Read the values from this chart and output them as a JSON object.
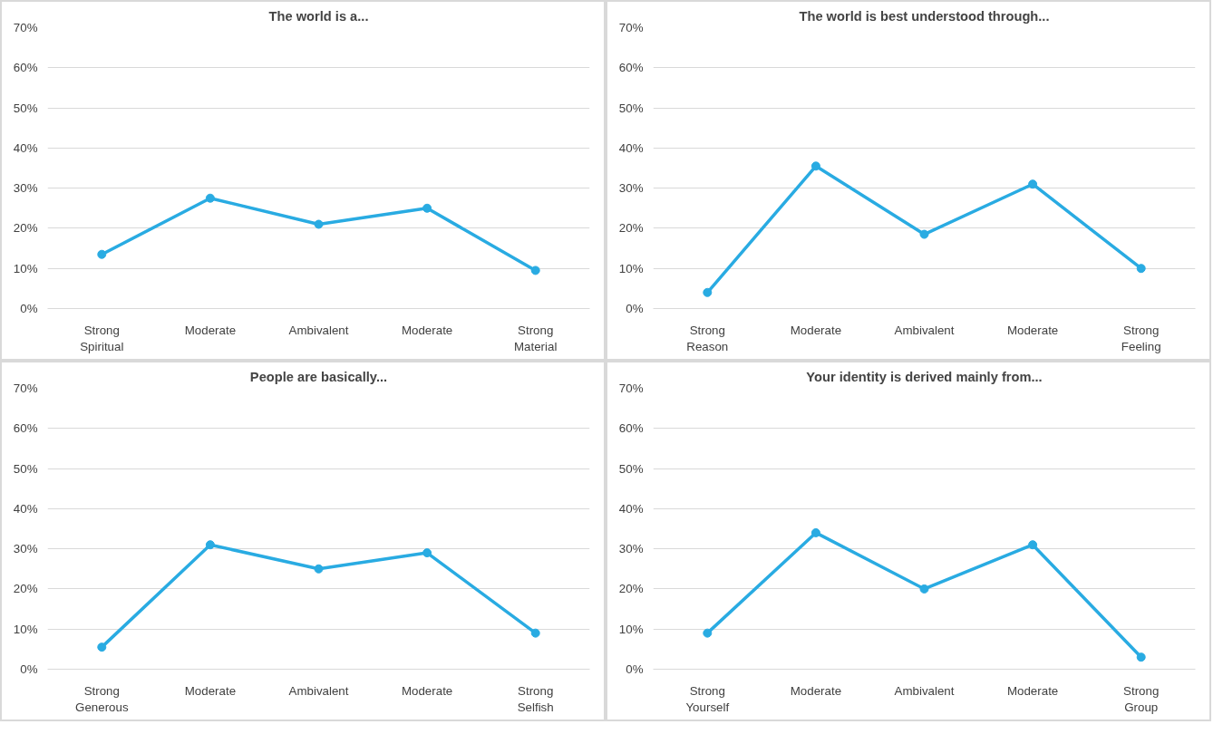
{
  "chart_data": [
    {
      "type": "line",
      "title": "The world is a...",
      "categories": [
        "Strong\nSpiritual",
        "Moderate",
        "Ambivalent",
        "Moderate",
        "Strong\nMaterial"
      ],
      "series": [
        {
          "color": "#29abe2",
          "values": [
            13.5,
            27.5,
            21,
            25,
            9.5
          ]
        }
      ],
      "ylim": [
        0,
        70
      ],
      "yticks": [
        {
          "value": 0,
          "label": "0%"
        },
        {
          "value": 10,
          "label": "10%"
        },
        {
          "value": 20,
          "label": "20%"
        },
        {
          "value": 30,
          "label": "30%"
        },
        {
          "value": 40,
          "label": "40%"
        },
        {
          "value": 50,
          "label": "50%"
        },
        {
          "value": 60,
          "label": "60%"
        },
        {
          "value": 70,
          "label": "70%"
        }
      ],
      "grid": "y",
      "marker": "circle",
      "line_style": "solid"
    },
    {
      "type": "line",
      "title": "The world is best understood through...",
      "categories": [
        "Strong\nReason",
        "Moderate",
        "Ambivalent",
        "Moderate",
        "Strong\nFeeling"
      ],
      "series": [
        {
          "color": "#29abe2",
          "values": [
            4,
            35.5,
            18.5,
            31,
            10
          ]
        }
      ],
      "ylim": [
        0,
        70
      ],
      "yticks": [
        {
          "value": 0,
          "label": "0%"
        },
        {
          "value": 10,
          "label": "10%"
        },
        {
          "value": 20,
          "label": "20%"
        },
        {
          "value": 30,
          "label": "30%"
        },
        {
          "value": 40,
          "label": "40%"
        },
        {
          "value": 50,
          "label": "50%"
        },
        {
          "value": 60,
          "label": "60%"
        },
        {
          "value": 70,
          "label": "70%"
        }
      ],
      "grid": "y",
      "marker": "circle",
      "line_style": "solid"
    },
    {
      "type": "line",
      "title": "People are basically...",
      "categories": [
        "Strong\nGenerous",
        "Moderate",
        "Ambivalent",
        "Moderate",
        "Strong\nSelfish"
      ],
      "series": [
        {
          "color": "#29abe2",
          "values": [
            5.5,
            31,
            25,
            29,
            9
          ]
        }
      ],
      "ylim": [
        0,
        70
      ],
      "yticks": [
        {
          "value": 0,
          "label": "0%"
        },
        {
          "value": 10,
          "label": "10%"
        },
        {
          "value": 20,
          "label": "20%"
        },
        {
          "value": 30,
          "label": "30%"
        },
        {
          "value": 40,
          "label": "40%"
        },
        {
          "value": 50,
          "label": "50%"
        },
        {
          "value": 60,
          "label": "60%"
        },
        {
          "value": 70,
          "label": "70%"
        }
      ],
      "grid": "y",
      "marker": "circle",
      "line_style": "solid"
    },
    {
      "type": "line",
      "title": "Your identity is derived mainly from...",
      "categories": [
        "Strong\nYourself",
        "Moderate",
        "Ambivalent",
        "Moderate",
        "Strong\nGroup"
      ],
      "series": [
        {
          "color": "#29abe2",
          "values": [
            9,
            34,
            20,
            31,
            3
          ]
        }
      ],
      "ylim": [
        0,
        70
      ],
      "yticks": [
        {
          "value": 0,
          "label": "0%"
        },
        {
          "value": 10,
          "label": "10%"
        },
        {
          "value": 20,
          "label": "20%"
        },
        {
          "value": 30,
          "label": "30%"
        },
        {
          "value": 40,
          "label": "40%"
        },
        {
          "value": 50,
          "label": "50%"
        },
        {
          "value": 60,
          "label": "60%"
        },
        {
          "value": 70,
          "label": "70%"
        }
      ],
      "grid": "y",
      "marker": "circle",
      "line_style": "solid"
    }
  ]
}
